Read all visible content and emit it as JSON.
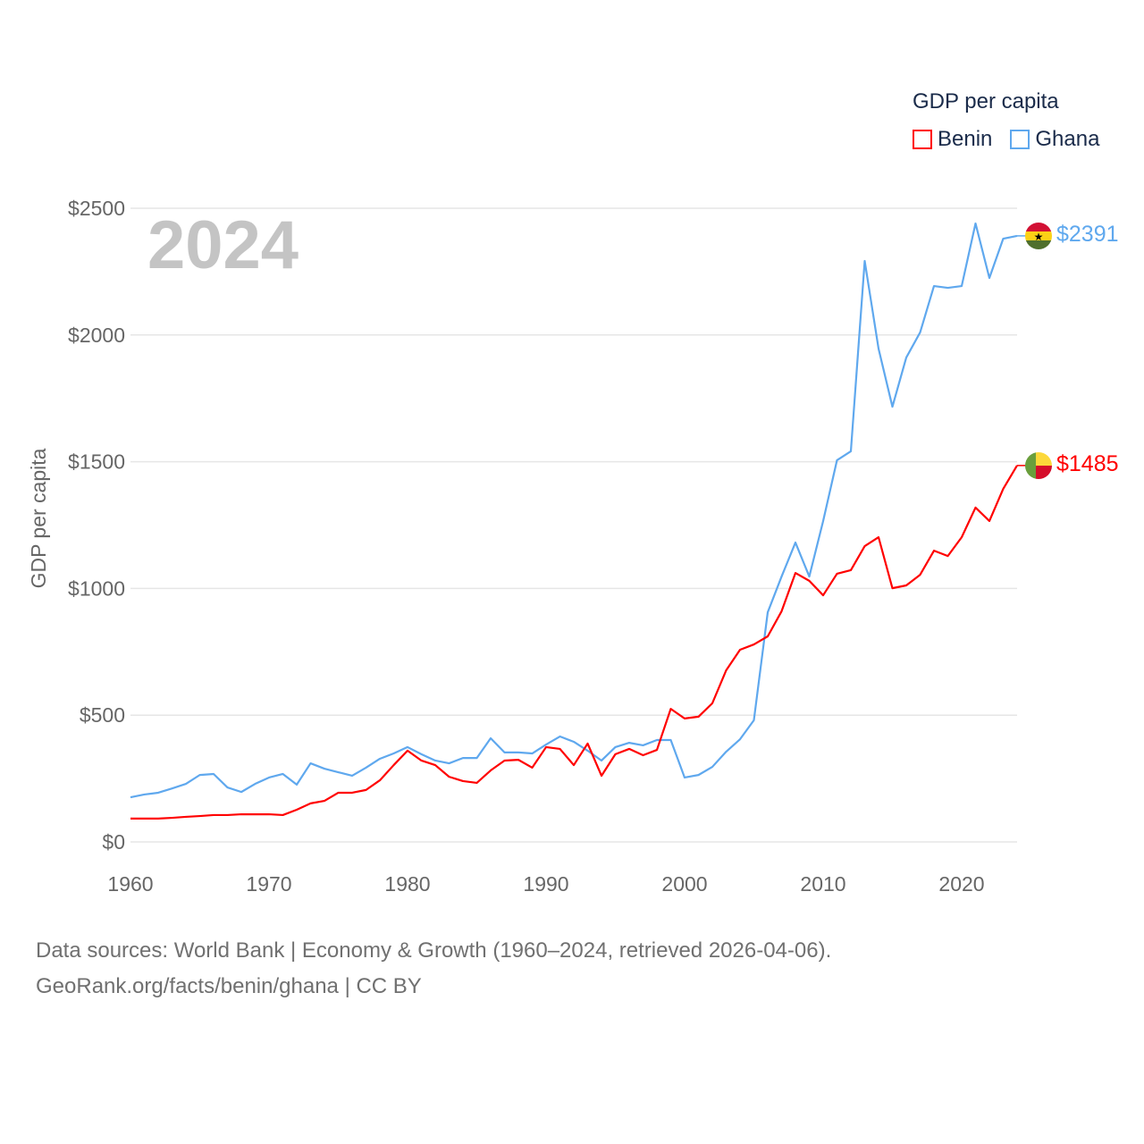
{
  "chart_data": {
    "type": "line",
    "title": "GDP per capita",
    "ylabel": "GDP per capita",
    "xlabel": "",
    "year_label": "2024",
    "xlim": [
      1960,
      2024
    ],
    "ylim": [
      0,
      2500
    ],
    "x_ticks": [
      1960,
      1970,
      1980,
      1990,
      2000,
      2010,
      2020
    ],
    "y_ticks": [
      0,
      500,
      1000,
      1500,
      2000,
      2500
    ],
    "y_tick_labels": [
      "$0",
      "$500",
      "$1000",
      "$1500",
      "$2000",
      "$2500"
    ],
    "grid": true,
    "legend_position": "top-right",
    "x": [
      1960,
      1961,
      1962,
      1963,
      1964,
      1965,
      1966,
      1967,
      1968,
      1969,
      1970,
      1971,
      1972,
      1973,
      1974,
      1975,
      1976,
      1977,
      1978,
      1979,
      1980,
      1981,
      1982,
      1983,
      1984,
      1985,
      1986,
      1987,
      1988,
      1989,
      1990,
      1991,
      1992,
      1993,
      1994,
      1995,
      1996,
      1997,
      1998,
      1999,
      2000,
      2001,
      2002,
      2003,
      2004,
      2005,
      2006,
      2007,
      2008,
      2009,
      2010,
      2011,
      2012,
      2013,
      2014,
      2015,
      2016,
      2017,
      2018,
      2019,
      2020,
      2021,
      2022,
      2023,
      2024
    ],
    "series": [
      {
        "name": "Benin",
        "color": "#ff0000",
        "end_label": "$1485",
        "values": [
          92,
          92,
          92,
          95,
          99,
          102,
          106,
          106,
          109,
          109,
          109,
          106,
          127,
          152,
          162,
          194,
          194,
          205,
          243,
          303,
          360,
          321,
          303,
          257,
          240,
          233,
          282,
          321,
          324,
          293,
          374,
          367,
          303,
          388,
          261,
          346,
          367,
          342,
          363,
          525,
          487,
          494,
          547,
          677,
          758,
          779,
          811,
          910,
          1061,
          1030,
          973,
          1058,
          1072,
          1167,
          1202,
          1001,
          1012,
          1054,
          1149,
          1128,
          1202,
          1319,
          1266,
          1393,
          1485
        ]
      },
      {
        "name": "Ghana",
        "color": "#5fa8ee",
        "end_label": "$2391",
        "values": [
          176,
          187,
          194,
          211,
          229,
          264,
          268,
          215,
          197,
          229,
          254,
          268,
          226,
          310,
          289,
          275,
          261,
          293,
          328,
          349,
          374,
          346,
          321,
          310,
          331,
          331,
          409,
          353,
          353,
          349,
          384,
          416,
          395,
          360,
          321,
          374,
          391,
          381,
          402,
          402,
          254,
          264,
          296,
          356,
          405,
          480,
          906,
          1047,
          1181,
          1047,
          1266,
          1506,
          1541,
          2292,
          1946,
          1717,
          1911,
          2010,
          2193,
          2186,
          2193,
          2440,
          2225,
          2380,
          2391
        ]
      }
    ]
  },
  "footer": {
    "line1": "Data sources: World Bank | Economy & Growth (1960–2024, retrieved 2026-04-06).",
    "line2": "GeoRank.org/facts/benin/ghana | CC BY"
  }
}
